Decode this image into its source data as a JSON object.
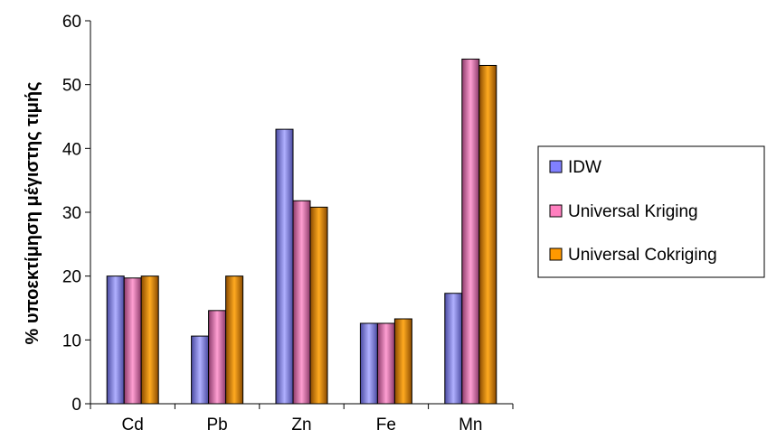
{
  "chart_data": {
    "type": "bar",
    "categories": [
      "Cd",
      "Pb",
      "Zn",
      "Fe",
      "Mn"
    ],
    "series": [
      {
        "name": "IDW",
        "values": [
          20,
          10.6,
          43,
          12.6,
          17.3
        ],
        "color": "#8080ff"
      },
      {
        "name": "Universal Kriging",
        "values": [
          19.7,
          14.6,
          31.8,
          12.6,
          54
        ],
        "color": "#ff7fbf"
      },
      {
        "name": "Universal Cokriging",
        "values": [
          20,
          20,
          30.8,
          13.3,
          53
        ],
        "color": "#ff9900"
      }
    ],
    "ylabel": "% υποεκτίμηση μέγιστης τιμής",
    "ylim": [
      0,
      60
    ],
    "yticks": [
      0,
      10,
      20,
      30,
      40,
      50,
      60
    ],
    "grid": false,
    "legend_position": "right"
  }
}
